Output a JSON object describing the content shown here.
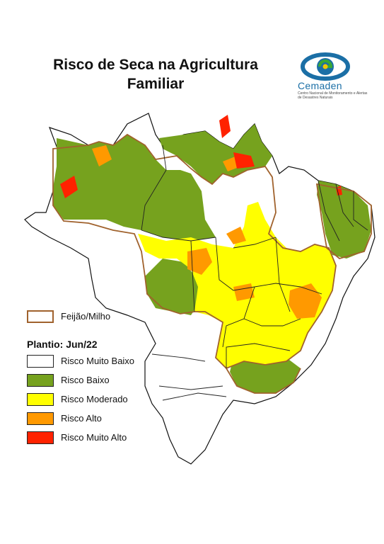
{
  "title_line1": "Risco de Seca na Agricultura",
  "title_line2": "Familiar",
  "logo": {
    "name": "Cemaden",
    "subtitle": "Centro Nacional de Monitoramento e Alertas de Desastres Naturais",
    "colors": {
      "blue": "#1b6fa6",
      "green": "#3aa935",
      "yellow": "#f2c500"
    }
  },
  "legend": {
    "crop_label": "Feijão/Milho",
    "crop_border_color": "#a0622d",
    "plantio_label": "Plantio: Jun/22",
    "classes": [
      {
        "label": "Risco Muito Baixo",
        "color": "#ffffff"
      },
      {
        "label": "Risco Baixo",
        "color": "#76a21e"
      },
      {
        "label": "Risco Moderado",
        "color": "#ffff00"
      },
      {
        "label": "Risco Alto",
        "color": "#ff9900"
      },
      {
        "label": "Risco Muito Alto",
        "color": "#ff2200"
      }
    ]
  }
}
